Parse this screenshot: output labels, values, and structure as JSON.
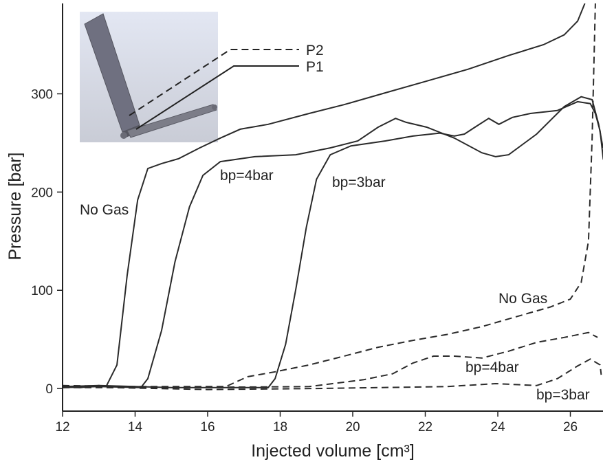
{
  "chart_data": {
    "type": "line",
    "x_label": "Injected volume [cm³]",
    "y_label": "Pressure [bar]",
    "xlim": [
      12,
      26.9
    ],
    "ylim": [
      -23,
      392
    ],
    "xticks": [
      12,
      14,
      16,
      18,
      20,
      22,
      24,
      26
    ],
    "yticks": [
      0,
      100,
      200,
      300
    ],
    "inset_labels": [
      "P2",
      "P1"
    ],
    "series": [
      {
        "name": "No Gas",
        "line_style": "solid",
        "color": "#2a2a2a",
        "x": [
          12,
          12.5,
          13.0,
          13.2,
          13.5,
          13.78,
          14.07,
          14.35,
          14.73,
          15.2,
          15.78,
          16.35,
          16.9,
          17.67,
          18.8,
          19.76,
          20.9,
          22.04,
          23.18,
          24.3,
          25.26,
          25.83,
          26.2,
          26.4
        ],
        "values": [
          2,
          1,
          3,
          2,
          24,
          115,
          192,
          224,
          229,
          234,
          245,
          255,
          264,
          269,
          280,
          289,
          301,
          313,
          325,
          339,
          350,
          360,
          374,
          392
        ]
      },
      {
        "name": "bp=4bar",
        "line_style": "solid",
        "color": "#2a2a2a",
        "x": [
          12,
          13,
          14.16,
          14.35,
          14.73,
          15.1,
          15.5,
          15.87,
          16.35,
          17.3,
          18.43,
          19.38,
          20.14,
          20.7,
          21.18,
          21.47,
          22.04,
          22.8,
          23.56,
          23.94,
          24.3,
          25.07,
          25.83,
          26.3,
          26.6,
          26.78,
          26.9
        ],
        "values": [
          1,
          2,
          1,
          10,
          59,
          129,
          185,
          217,
          231,
          236,
          238,
          245,
          252,
          266,
          275,
          271,
          266,
          255,
          240,
          236,
          238,
          259,
          287,
          297,
          294,
          269,
          245
        ]
      },
      {
        "name": "bp=3bar",
        "line_style": "solid",
        "color": "#2a2a2a",
        "x": [
          12,
          13,
          15,
          17.67,
          17.86,
          18.15,
          18.43,
          18.72,
          19.0,
          19.38,
          19.95,
          20.9,
          21.66,
          22.4,
          22.8,
          23.08,
          23.37,
          23.75,
          24.03,
          24.4,
          24.9,
          25.64,
          26.2,
          26.55,
          26.69,
          26.82,
          26.91
        ],
        "values": [
          2,
          3,
          1,
          1,
          10,
          45,
          101,
          164,
          213,
          238,
          247,
          252,
          257,
          260,
          257,
          259,
          266,
          275,
          269,
          276,
          280,
          283,
          292,
          290,
          280,
          262,
          233
        ]
      },
      {
        "name": "No Gas",
        "line_style": "dashed",
        "color": "#2a2a2a",
        "x": [
          12,
          14,
          16.5,
          17.1,
          17.86,
          18.8,
          19.76,
          20.7,
          21.66,
          22.6,
          23.56,
          24.5,
          25.45,
          26.0,
          26.3,
          26.5,
          26.6,
          26.69
        ],
        "values": [
          3,
          2,
          2,
          12,
          17,
          24,
          33,
          42,
          49,
          55,
          63,
          73,
          83,
          91,
          108,
          150,
          255,
          392
        ]
      },
      {
        "name": "bp=4bar",
        "line_style": "dashed",
        "color": "#2a2a2a",
        "x": [
          12,
          15,
          18.8,
          20.3,
          21.1,
          21.66,
          22.23,
          22.8,
          23.56,
          24.3,
          25.07,
          25.83,
          26.5,
          26.75
        ],
        "values": [
          1,
          1,
          2,
          9,
          15,
          26,
          33,
          33,
          31,
          38,
          47,
          52,
          57,
          52
        ]
      },
      {
        "name": "bp=3bar",
        "line_style": "dashed",
        "color": "#2a2a2a",
        "x": [
          12,
          16,
          19,
          22.6,
          23.94,
          25.07,
          25.64,
          26.2,
          26.55,
          26.82,
          26.85
        ],
        "values": [
          2,
          -1,
          0,
          2,
          5,
          3,
          10,
          23,
          30,
          24,
          14
        ]
      }
    ]
  }
}
